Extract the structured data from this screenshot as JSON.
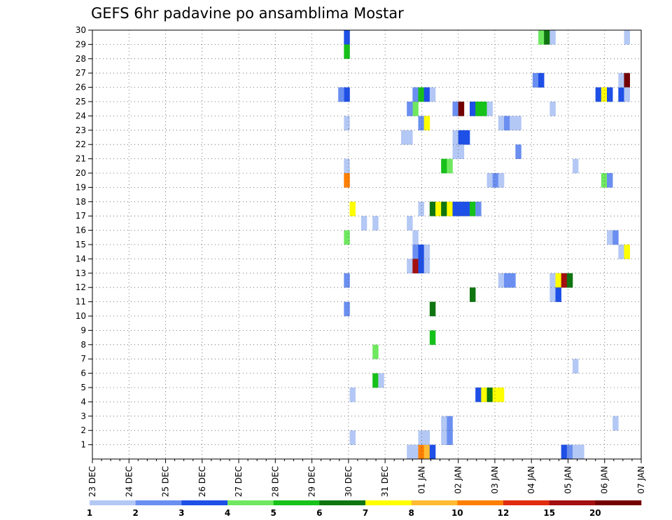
{
  "chart_data": {
    "type": "heatmap",
    "title": "GEFS 6hr padavine po ansamblima Mostar",
    "xlabel": "",
    "ylabel": "",
    "x_ticks": [
      "23 DEC",
      "24 DEC",
      "25 DEC",
      "26 DEC",
      "27 DEC",
      "28 DEC",
      "29 DEC",
      "30 DEC",
      "31 DEC",
      "01 JAN",
      "02 JAN",
      "03 JAN",
      "04 JAN",
      "05 JAN",
      "06 JAN",
      "07 JAN"
    ],
    "y_ticks": [
      "1",
      "2",
      "3",
      "4",
      "5",
      "6",
      "7",
      "8",
      "9",
      "10",
      "11",
      "12",
      "13",
      "14",
      "15",
      "16",
      "17",
      "18",
      "19",
      "20",
      "21",
      "22",
      "23",
      "24",
      "25",
      "26",
      "27",
      "28",
      "29",
      "30"
    ],
    "ylim": [
      0,
      30
    ],
    "x_step": "6hr",
    "grid": true,
    "legend": {
      "placement": "bottom",
      "colors": [
        "#b4c8f5",
        "#6a8ff0",
        "#1e4fe6",
        "#6fe860",
        "#16c11a",
        "#0f7510",
        "#ffff00",
        "#ffbb33",
        "#ff7f00",
        "#e02b0f",
        "#a30f0f",
        "#730000"
      ],
      "labels": [
        "1",
        "2",
        "3",
        "4",
        "5",
        "6",
        "7",
        "8",
        "10",
        "12",
        "15",
        "20"
      ]
    },
    "cells": [
      [
        44,
        29,
        2
      ],
      [
        44,
        28,
        4
      ],
      [
        44,
        25,
        2
      ],
      [
        44,
        23,
        0
      ],
      [
        44,
        20,
        0
      ],
      [
        44,
        19,
        8
      ],
      [
        44,
        15,
        3
      ],
      [
        44,
        12,
        1
      ],
      [
        44,
        10,
        1
      ],
      [
        43,
        25,
        1
      ],
      [
        45,
        17,
        6
      ],
      [
        45,
        4,
        0
      ],
      [
        45,
        1,
        0
      ],
      [
        47,
        16,
        0
      ],
      [
        49,
        16,
        0
      ],
      [
        49,
        7,
        3
      ],
      [
        49,
        5,
        4
      ],
      [
        50,
        5,
        0
      ],
      [
        55,
        16,
        0
      ],
      [
        55,
        13,
        0
      ],
      [
        55,
        0,
        0
      ],
      [
        54,
        22,
        0
      ],
      [
        55,
        22,
        0
      ],
      [
        56,
        24,
        3
      ],
      [
        55,
        24,
        1
      ],
      [
        56,
        25,
        1
      ],
      [
        56,
        15,
        0
      ],
      [
        56,
        14,
        1
      ],
      [
        56,
        13,
        10
      ],
      [
        56,
        0,
        0
      ],
      [
        57,
        25,
        4
      ],
      [
        57,
        23,
        1
      ],
      [
        57,
        17,
        0
      ],
      [
        57,
        14,
        2
      ],
      [
        57,
        13,
        2
      ],
      [
        57,
        0,
        8
      ],
      [
        57,
        1,
        0
      ],
      [
        58,
        25,
        2
      ],
      [
        58,
        23,
        6
      ],
      [
        58,
        14,
        0
      ],
      [
        58,
        13,
        0
      ],
      [
        58,
        0,
        7
      ],
      [
        58,
        1,
        0
      ],
      [
        59,
        25,
        0
      ],
      [
        59,
        17,
        5
      ],
      [
        59,
        10,
        5
      ],
      [
        59,
        8,
        4
      ],
      [
        59,
        0,
        2
      ],
      [
        60,
        17,
        6
      ],
      [
        61,
        17,
        5
      ],
      [
        61,
        20,
        4
      ],
      [
        62,
        17,
        6
      ],
      [
        61,
        2,
        0
      ],
      [
        61,
        1,
        0
      ],
      [
        62,
        1,
        1
      ],
      [
        62,
        2,
        1
      ],
      [
        62,
        20,
        3
      ],
      [
        63,
        17,
        2
      ],
      [
        63,
        22,
        0
      ],
      [
        63,
        21,
        0
      ],
      [
        63,
        24,
        1
      ],
      [
        64,
        17,
        2
      ],
      [
        64,
        22,
        2
      ],
      [
        64,
        21,
        0
      ],
      [
        64,
        24,
        11
      ],
      [
        65,
        17,
        2
      ],
      [
        65,
        22,
        2
      ],
      [
        66,
        17,
        4
      ],
      [
        66,
        11,
        5
      ],
      [
        66,
        24,
        2
      ],
      [
        67,
        17,
        1
      ],
      [
        67,
        24,
        4
      ],
      [
        67,
        4,
        2
      ],
      [
        68,
        24,
        4
      ],
      [
        68,
        4,
        6
      ],
      [
        69,
        24,
        0
      ],
      [
        69,
        19,
        0
      ],
      [
        69,
        4,
        5
      ],
      [
        70,
        19,
        1
      ],
      [
        70,
        4,
        6
      ],
      [
        71,
        19,
        0
      ],
      [
        71,
        23,
        0
      ],
      [
        71,
        12,
        0
      ],
      [
        71,
        4,
        6
      ],
      [
        72,
        23,
        1
      ],
      [
        72,
        12,
        1
      ],
      [
        73,
        23,
        0
      ],
      [
        73,
        12,
        1
      ],
      [
        74,
        23,
        0
      ],
      [
        74,
        21,
        1
      ],
      [
        77,
        26,
        1
      ],
      [
        78,
        26,
        2
      ],
      [
        78,
        29,
        3
      ],
      [
        79,
        29,
        5
      ],
      [
        80,
        29,
        0
      ],
      [
        80,
        24,
        0
      ],
      [
        80,
        12,
        0
      ],
      [
        80,
        11,
        0
      ],
      [
        81,
        12,
        6
      ],
      [
        81,
        11,
        2
      ],
      [
        82,
        12,
        10
      ],
      [
        82,
        0,
        2
      ],
      [
        83,
        12,
        5
      ],
      [
        83,
        0,
        1
      ],
      [
        84,
        20,
        0
      ],
      [
        84,
        6,
        0
      ],
      [
        84,
        0,
        0
      ],
      [
        85,
        0,
        0
      ],
      [
        88,
        25,
        2
      ],
      [
        89,
        25,
        6
      ],
      [
        90,
        25,
        2
      ],
      [
        89,
        19,
        3
      ],
      [
        90,
        19,
        1
      ],
      [
        90,
        15,
        0
      ],
      [
        91,
        15,
        1
      ],
      [
        91,
        2,
        0
      ],
      [
        92,
        25,
        2
      ],
      [
        92,
        26,
        0
      ],
      [
        92,
        14,
        0
      ],
      [
        93,
        29,
        0
      ],
      [
        93,
        26,
        11
      ],
      [
        93,
        25,
        0
      ],
      [
        93,
        14,
        6
      ]
    ]
  }
}
